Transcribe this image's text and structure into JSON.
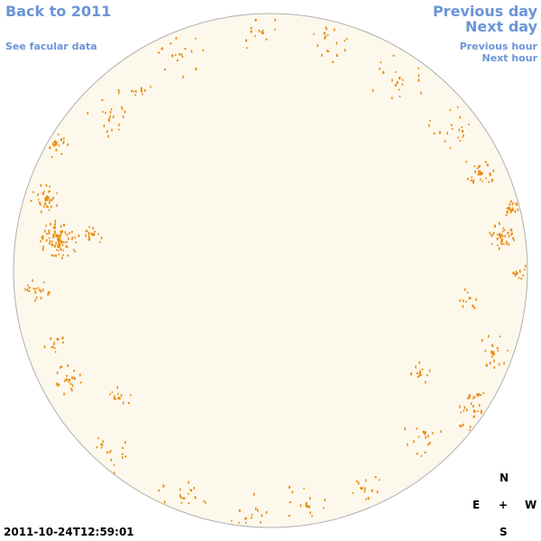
{
  "nav": {
    "back": "Back to 2011",
    "facular": "See facular data",
    "prev_day": "Previous day",
    "next_day": "Next day",
    "prev_hour": "Previous hour",
    "next_hour": "Next hour"
  },
  "compass": {
    "n": "N",
    "e": "E",
    "center": "+",
    "w": "W",
    "s": "S"
  },
  "timestamp": "2011-10-24T12:59:01",
  "colors": {
    "disk": "#fdf8ec",
    "disk_edge": "#b0b0b0",
    "facula": "#e88a0a",
    "link": "#6a95d8"
  }
}
